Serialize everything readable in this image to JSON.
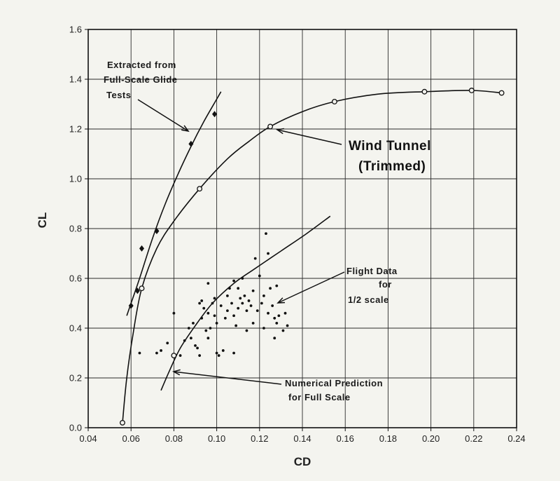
{
  "chart_data": {
    "type": "scatter",
    "xlabel": "CD",
    "ylabel": "CL",
    "xlim": [
      0.04,
      0.24
    ],
    "ylim": [
      0.0,
      1.6
    ],
    "x_ticks": [
      "0.04",
      "0.06",
      "0.08",
      "0.10",
      "0.12",
      "0.14",
      "0.16",
      "0.18",
      "0.20",
      "0.22",
      "0.24"
    ],
    "y_ticks": [
      "0.0",
      "0.2",
      "0.4",
      "0.6",
      "0.8",
      "1.0",
      "1.2",
      "1.4",
      "1.6"
    ],
    "grid": true,
    "series": [
      {
        "name": "Extracted from Full-Scale Glide Tests",
        "marker": "filled-diamond",
        "points": [
          [
            0.06,
            0.49
          ],
          [
            0.063,
            0.55
          ],
          [
            0.065,
            0.72
          ],
          [
            0.072,
            0.79
          ],
          [
            0.088,
            1.14
          ],
          [
            0.099,
            1.26
          ]
        ]
      },
      {
        "name": "Wind Tunnel (Trimmed)",
        "marker": "open-circle",
        "points": [
          [
            0.056,
            0.02
          ],
          [
            0.065,
            0.56
          ],
          [
            0.092,
            0.96
          ],
          [
            0.125,
            1.21
          ],
          [
            0.155,
            1.31
          ],
          [
            0.197,
            1.35
          ],
          [
            0.219,
            1.355
          ],
          [
            0.233,
            1.345
          ]
        ]
      },
      {
        "name": "Flight Data for 1/2 scale",
        "marker": "dot",
        "points": [
          [
            0.064,
            0.3
          ],
          [
            0.072,
            0.3
          ],
          [
            0.074,
            0.31
          ],
          [
            0.077,
            0.34
          ],
          [
            0.08,
            0.46
          ],
          [
            0.083,
            0.29
          ],
          [
            0.085,
            0.35
          ],
          [
            0.087,
            0.4
          ],
          [
            0.088,
            0.36
          ],
          [
            0.089,
            0.42
          ],
          [
            0.09,
            0.33
          ],
          [
            0.091,
            0.32
          ],
          [
            0.092,
            0.5
          ],
          [
            0.093,
            0.51
          ],
          [
            0.093,
            0.44
          ],
          [
            0.094,
            0.48
          ],
          [
            0.095,
            0.39
          ],
          [
            0.096,
            0.46
          ],
          [
            0.096,
            0.36
          ],
          [
            0.097,
            0.4
          ],
          [
            0.098,
            0.5
          ],
          [
            0.099,
            0.52
          ],
          [
            0.099,
            0.45
          ],
          [
            0.1,
            0.42
          ],
          [
            0.1,
            0.3
          ],
          [
            0.101,
            0.29
          ],
          [
            0.102,
            0.49
          ],
          [
            0.103,
            0.31
          ],
          [
            0.104,
            0.44
          ],
          [
            0.105,
            0.53
          ],
          [
            0.105,
            0.47
          ],
          [
            0.106,
            0.56
          ],
          [
            0.107,
            0.5
          ],
          [
            0.108,
            0.59
          ],
          [
            0.108,
            0.45
          ],
          [
            0.109,
            0.41
          ],
          [
            0.11,
            0.48
          ],
          [
            0.11,
            0.56
          ],
          [
            0.111,
            0.52
          ],
          [
            0.112,
            0.5
          ],
          [
            0.112,
            0.6
          ],
          [
            0.113,
            0.53
          ],
          [
            0.114,
            0.47
          ],
          [
            0.114,
            0.39
          ],
          [
            0.115,
            0.51
          ],
          [
            0.116,
            0.49
          ],
          [
            0.117,
            0.55
          ],
          [
            0.117,
            0.42
          ],
          [
            0.118,
            0.68
          ],
          [
            0.119,
            0.47
          ],
          [
            0.12,
            0.61
          ],
          [
            0.121,
            0.5
          ],
          [
            0.122,
            0.53
          ],
          [
            0.122,
            0.4
          ],
          [
            0.123,
            0.78
          ],
          [
            0.124,
            0.7
          ],
          [
            0.124,
            0.46
          ],
          [
            0.125,
            0.56
          ],
          [
            0.126,
            0.49
          ],
          [
            0.127,
            0.36
          ],
          [
            0.127,
            0.44
          ],
          [
            0.128,
            0.42
          ],
          [
            0.128,
            0.57
          ],
          [
            0.129,
            0.45
          ],
          [
            0.131,
            0.39
          ],
          [
            0.132,
            0.46
          ],
          [
            0.133,
            0.41
          ],
          [
            0.092,
            0.29
          ],
          [
            0.096,
            0.58
          ],
          [
            0.108,
            0.3
          ]
        ]
      },
      {
        "name": "Numerical Prediction for Full Scale",
        "marker": "open-circle",
        "points": [
          [
            0.08,
            0.29
          ]
        ]
      }
    ],
    "curves": [
      {
        "name": "glide-fit",
        "points": [
          [
            0.058,
            0.45
          ],
          [
            0.06,
            0.5
          ],
          [
            0.064,
            0.6
          ],
          [
            0.07,
            0.76
          ],
          [
            0.076,
            0.9
          ],
          [
            0.082,
            1.02
          ],
          [
            0.088,
            1.13
          ],
          [
            0.094,
            1.23
          ],
          [
            0.1,
            1.32
          ],
          [
            0.102,
            1.35
          ]
        ]
      },
      {
        "name": "wind-tunnel-fit",
        "points": [
          [
            0.056,
            0.02
          ],
          [
            0.058,
            0.2
          ],
          [
            0.061,
            0.38
          ],
          [
            0.065,
            0.56
          ],
          [
            0.072,
            0.72
          ],
          [
            0.08,
            0.83
          ],
          [
            0.092,
            0.96
          ],
          [
            0.105,
            1.08
          ],
          [
            0.115,
            1.15
          ],
          [
            0.125,
            1.21
          ],
          [
            0.14,
            1.27
          ],
          [
            0.155,
            1.31
          ],
          [
            0.175,
            1.34
          ],
          [
            0.197,
            1.35
          ],
          [
            0.219,
            1.355
          ],
          [
            0.233,
            1.345
          ]
        ]
      },
      {
        "name": "numerical-fit",
        "points": [
          [
            0.074,
            0.15
          ],
          [
            0.078,
            0.23
          ],
          [
            0.083,
            0.32
          ],
          [
            0.09,
            0.41
          ],
          [
            0.098,
            0.5
          ],
          [
            0.108,
            0.58
          ],
          [
            0.118,
            0.64
          ],
          [
            0.13,
            0.71
          ],
          [
            0.142,
            0.78
          ],
          [
            0.153,
            0.85
          ]
        ]
      }
    ],
    "annotations": [
      {
        "lines": [
          "Extracted  from",
          "Full-Scale  Glide",
          "Tests"
        ],
        "style": "normal"
      },
      {
        "lines": [
          "Wind  Tunnel",
          "(Trimmed)"
        ],
        "style": "big"
      },
      {
        "lines": [
          "Flight  Data",
          "for",
          "1/2   scale"
        ],
        "style": "normal"
      },
      {
        "lines": [
          "Numerical   Prediction",
          "for  Full Scale"
        ],
        "style": "normal"
      }
    ]
  }
}
